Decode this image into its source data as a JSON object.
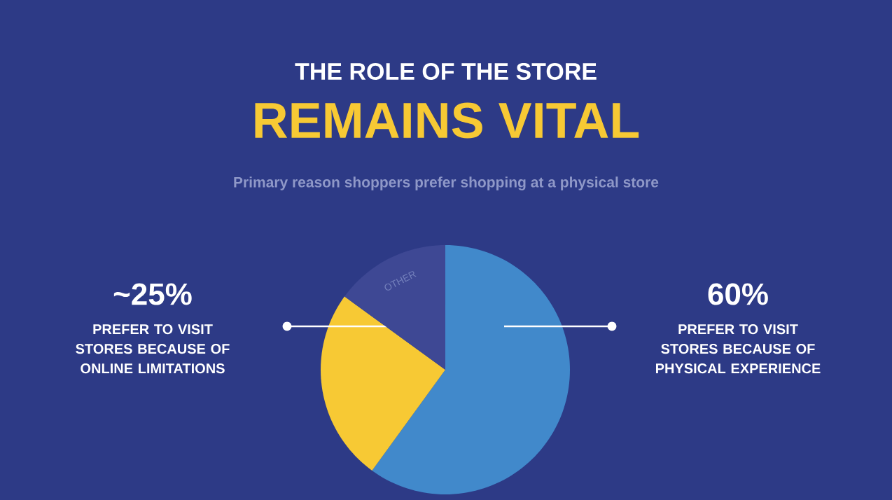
{
  "chart_data": {
    "type": "pie",
    "title": "THE ROLE OF THE STORE",
    "subtitle": "REMAINS VITAL",
    "annotations": [
      "Primary reason shoppers prefer shopping at a physical store"
    ],
    "categories": [
      "PREFER TO VISIT STORES BECAUSE OF PHYSICAL EXPERIENCE",
      "PREFER TO VISIT STORES BECAUSE OF ONLINE LIMITATIONS",
      "OTHER"
    ],
    "values": [
      60,
      25,
      15
    ],
    "value_labels": [
      "60%",
      "~25%",
      null
    ],
    "colors": [
      "#4189cb",
      "#f7c934",
      "#3e4894"
    ]
  }
}
